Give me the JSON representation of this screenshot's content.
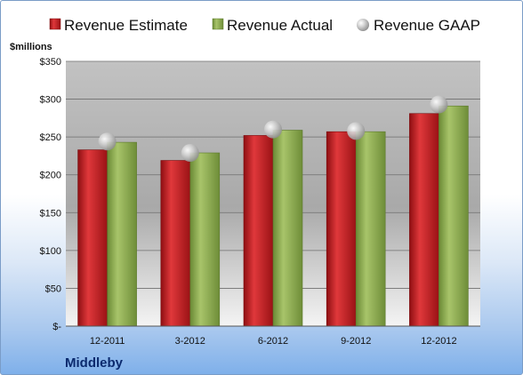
{
  "chart_data": {
    "type": "bar",
    "categories": [
      "12-2011",
      "3-2012",
      "6-2012",
      "9-2012",
      "12-2012"
    ],
    "series": [
      {
        "name": "Revenue Estimate",
        "kind": "bar",
        "color": "#c0191c",
        "values": [
          233,
          219,
          252,
          257,
          281
        ]
      },
      {
        "name": "Revenue Actual",
        "kind": "bar",
        "color": "#8fae4f",
        "values": [
          243,
          229,
          259,
          257,
          291
        ]
      },
      {
        "name": "Revenue GAAP",
        "kind": "marker",
        "color": "#c8c8c8",
        "values": [
          244,
          229,
          260,
          258,
          293
        ]
      }
    ],
    "ylim": [
      0,
      350
    ],
    "yticks": [
      0,
      50,
      100,
      150,
      200,
      250,
      300,
      350
    ],
    "ytick_labels": [
      "$-",
      "$50",
      "$100",
      "$150",
      "$200",
      "$250",
      "$300",
      "$350"
    ],
    "ylabel": "$millions",
    "grid": true,
    "legend": "top",
    "company": "Middleby"
  }
}
